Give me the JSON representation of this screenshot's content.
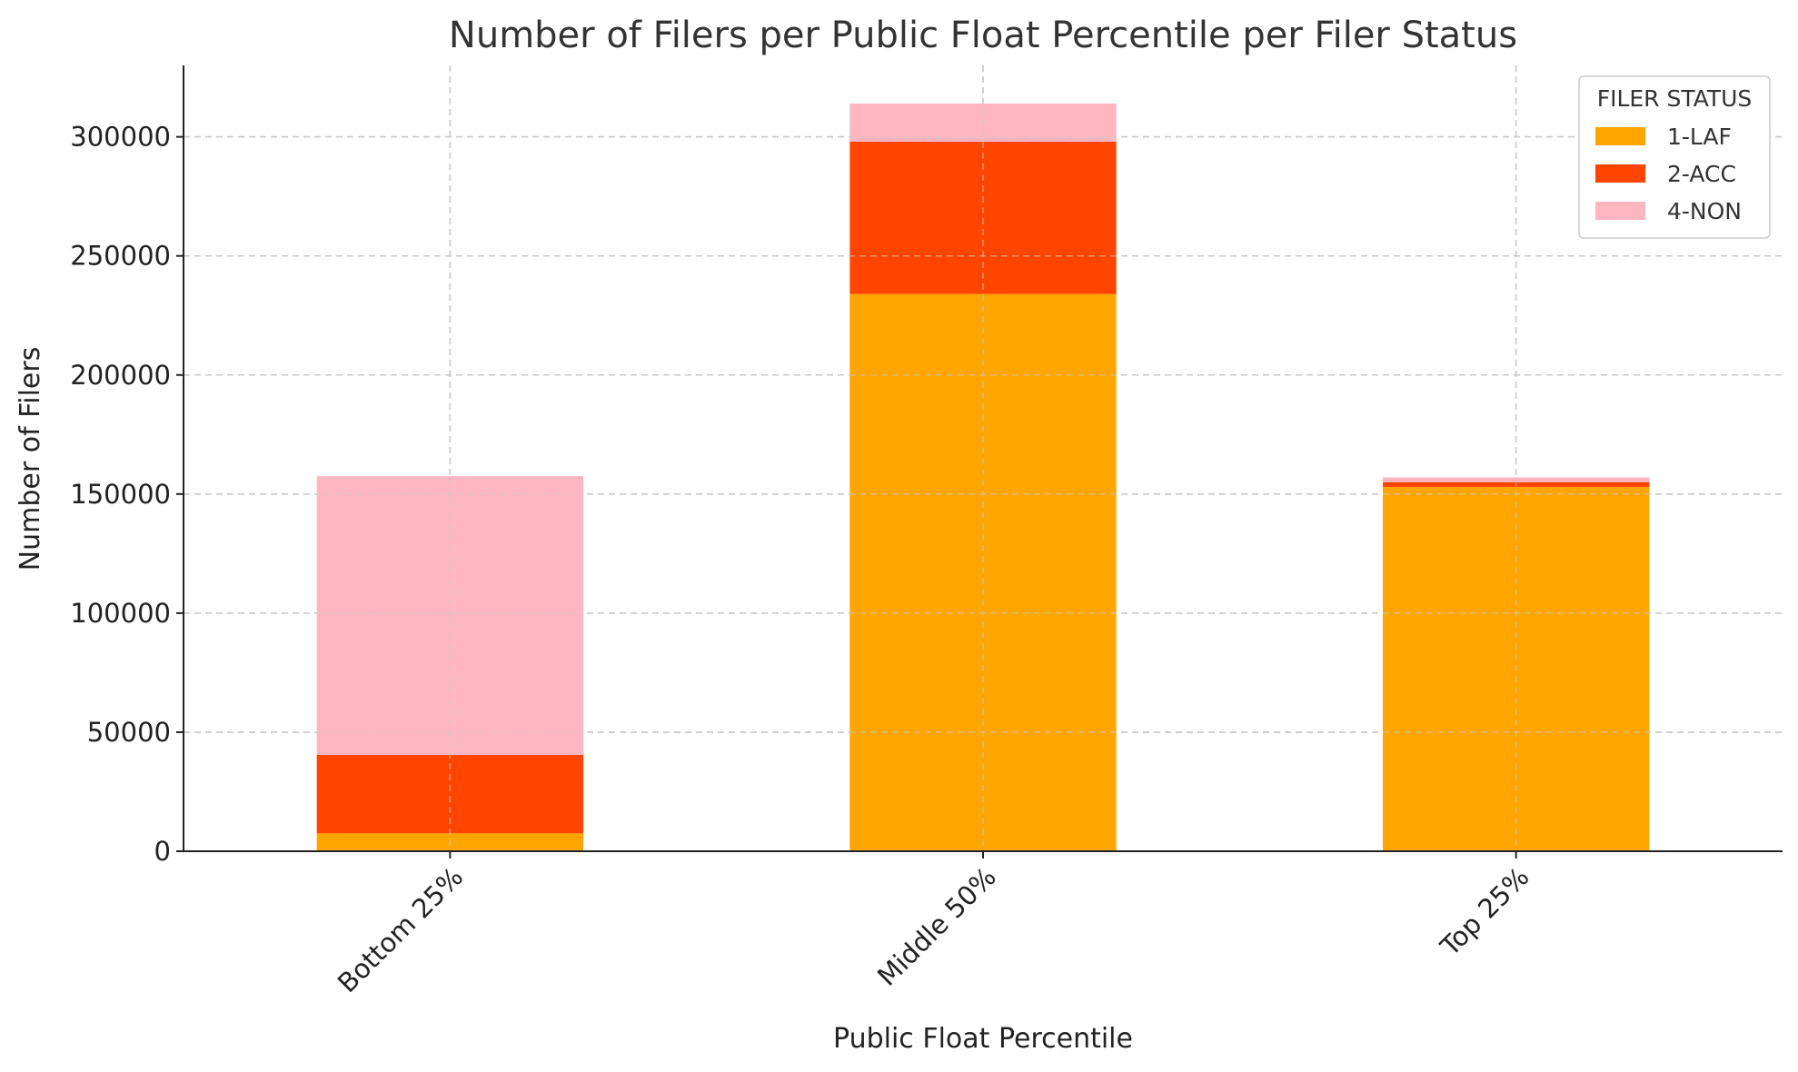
{
  "chart_data": {
    "type": "bar",
    "stacked": true,
    "title": "Number of Filers per Public Float Percentile per Filer Status",
    "xlabel": "Public Float Percentile",
    "ylabel": "Number of Filers",
    "categories": [
      "Bottom 25%",
      "Middle 50%",
      "Top 25%"
    ],
    "series": [
      {
        "name": "1-LAF",
        "color": "#FFA500",
        "values": [
          7500,
          234000,
          153000
        ]
      },
      {
        "name": "2-ACC",
        "color": "#FF4500",
        "values": [
          33000,
          64000,
          2000
        ]
      },
      {
        "name": "4-NON",
        "color": "#FFB6C1",
        "values": [
          117000,
          16000,
          2000
        ]
      }
    ],
    "ylim": [
      0,
      330000
    ],
    "yticks": [
      0,
      50000,
      100000,
      150000,
      200000,
      250000,
      300000
    ],
    "grid": true,
    "legend": {
      "title": "FILER STATUS",
      "placement": "top-right"
    }
  }
}
